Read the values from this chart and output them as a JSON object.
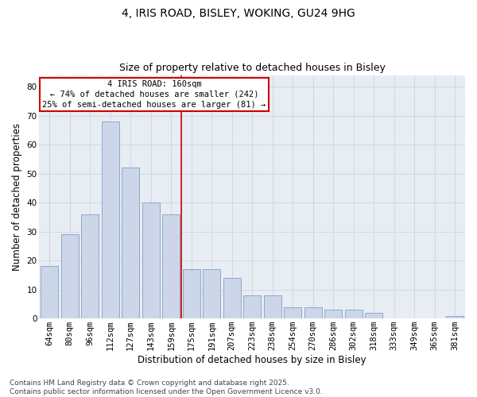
{
  "title": "4, IRIS ROAD, BISLEY, WOKING, GU24 9HG",
  "subtitle": "Size of property relative to detached houses in Bisley",
  "xlabel": "Distribution of detached houses by size in Bisley",
  "ylabel": "Number of detached properties",
  "categories": [
    "64sqm",
    "80sqm",
    "96sqm",
    "112sqm",
    "127sqm",
    "143sqm",
    "159sqm",
    "175sqm",
    "191sqm",
    "207sqm",
    "223sqm",
    "238sqm",
    "254sqm",
    "270sqm",
    "286sqm",
    "302sqm",
    "318sqm",
    "333sqm",
    "349sqm",
    "365sqm",
    "381sqm"
  ],
  "values": [
    18,
    29,
    36,
    68,
    52,
    40,
    36,
    17,
    17,
    14,
    8,
    8,
    4,
    4,
    3,
    3,
    2,
    0,
    0,
    0,
    1
  ],
  "bar_color": "#ccd6e8",
  "bar_edge_color": "#8aaac8",
  "vline_color": "#cc0000",
  "annotation_text": "4 IRIS ROAD: 160sqm\n← 74% of detached houses are smaller (242)\n25% of semi-detached houses are larger (81) →",
  "annotation_box_color": "#ffffff",
  "annotation_box_edge_color": "#cc0000",
  "ylim": [
    0,
    84
  ],
  "yticks": [
    0,
    10,
    20,
    30,
    40,
    50,
    60,
    70,
    80
  ],
  "grid_color": "#d0d8e0",
  "bg_color": "#e8edf4",
  "footnote": "Contains HM Land Registry data © Crown copyright and database right 2025.\nContains public sector information licensed under the Open Government Licence v3.0.",
  "title_fontsize": 10,
  "subtitle_fontsize": 9,
  "xlabel_fontsize": 8.5,
  "ylabel_fontsize": 8.5,
  "tick_fontsize": 7.5,
  "annot_fontsize": 7.5,
  "footnote_fontsize": 6.5
}
